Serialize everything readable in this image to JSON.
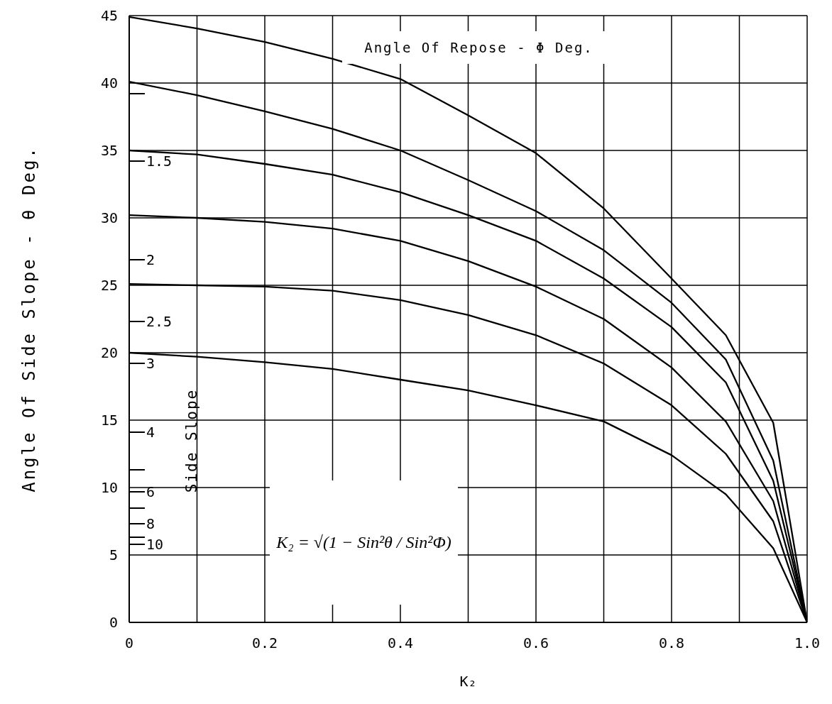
{
  "chart_data": {
    "type": "line",
    "xlabel": "K₂",
    "ylabel": "Angle Of Side Slope - θ Deg.",
    "annotations": [
      "Angle Of Repose - Φ Deg.",
      "K₂ = √(1 − Sin²θ / Sin²Φ)",
      "Side Slope",
      "1.5",
      "2",
      "2.5",
      "3",
      "4",
      "6",
      "8",
      "10"
    ],
    "x": [
      0,
      0.1,
      0.2,
      0.3,
      0.4,
      0.5,
      0.6,
      0.7,
      0.8,
      0.88,
      0.95,
      1
    ],
    "series": [
      {
        "color": "#000000",
        "values": [
          44.9,
          44.05,
          43.05,
          41.8,
          40.3,
          37.6,
          34.8,
          30.7,
          25.5,
          21.3,
          14.8,
          0
        ]
      },
      {
        "color": "#000000",
        "values": [
          40.1,
          39.1,
          37.9,
          36.6,
          35.0,
          32.8,
          30.5,
          27.6,
          23.7,
          19.5,
          12,
          0
        ]
      },
      {
        "color": "#000000",
        "values": [
          35.0,
          34.7,
          34.0,
          33.2,
          31.9,
          30.2,
          28.3,
          25.5,
          21.9,
          17.8,
          10.5,
          0
        ]
      },
      {
        "color": "#000000",
        "values": [
          30.2,
          30.0,
          29.7,
          29.2,
          28.3,
          26.8,
          24.9,
          22.5,
          18.9,
          14.9,
          9,
          0
        ]
      },
      {
        "color": "#000000",
        "values": [
          25.1,
          25.0,
          24.9,
          24.6,
          23.9,
          22.8,
          21.3,
          19.2,
          16.1,
          12.5,
          7.5,
          0
        ]
      },
      {
        "color": "#000000",
        "values": [
          20.0,
          19.7,
          19.3,
          18.8,
          18.0,
          17.2,
          16.1,
          14.9,
          12.4,
          9.5,
          5.5,
          0
        ]
      }
    ],
    "xlim": [
      0,
      1
    ],
    "xticks": [
      0,
      {
        "value": 0.1,
        "label": null
      },
      0.2,
      {
        "value": 0.3,
        "label": null
      },
      0.4,
      {
        "value": 0.5,
        "label": null
      },
      0.6,
      {
        "value": 0.7,
        "label": null
      },
      0.8,
      {
        "value": 0.9,
        "label": null
      },
      {
        "value": 1,
        "label": "1.0"
      }
    ],
    "ylim": [
      0,
      45
    ],
    "yticks": [
      0,
      5,
      10,
      15,
      20,
      25,
      30,
      35,
      40,
      45
    ],
    "grid": true
  }
}
